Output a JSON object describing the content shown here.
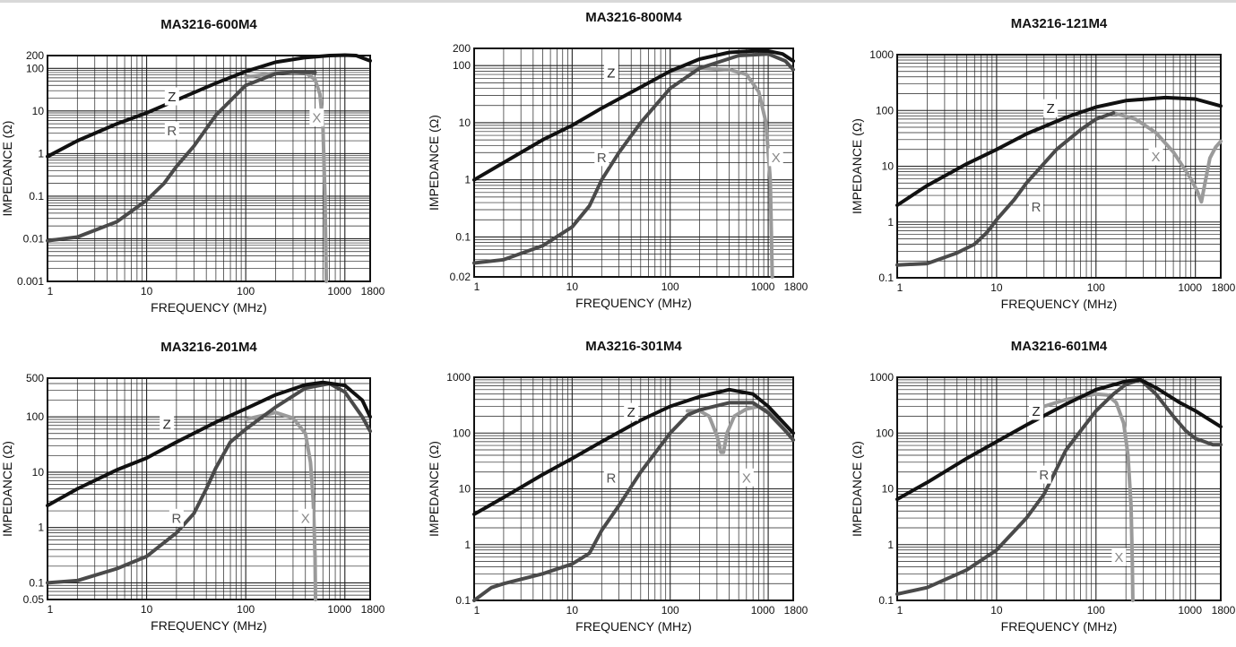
{
  "chart_data": [
    {
      "type": "line",
      "title": "MA3216-600M4",
      "xlabel": "FREQUENCY (MHz)",
      "ylabel": "IMPEDANCE (Ω)",
      "xscale": "log",
      "yscale": "log",
      "xlim": [
        1,
        1800
      ],
      "ylim": [
        0.001,
        200
      ],
      "xticks": [
        1,
        10,
        100,
        1000,
        1800
      ],
      "yticks": [
        0.001,
        0.01,
        0.1,
        1,
        10,
        100,
        200
      ],
      "grid": true,
      "series": [
        {
          "name": "Z",
          "label_at": [
            18,
            22
          ],
          "color": "#111111",
          "x": [
            1,
            2,
            5,
            10,
            20,
            50,
            100,
            200,
            400,
            700,
            1000,
            1300,
            1800
          ],
          "y": [
            0.85,
            2,
            5,
            9,
            18,
            45,
            85,
            140,
            180,
            200,
            205,
            200,
            150
          ]
        },
        {
          "name": "R",
          "label_at": [
            18,
            3.5
          ],
          "color": "#4a4a4a",
          "x": [
            1,
            2,
            5,
            10,
            15,
            20,
            30,
            50,
            100,
            200,
            300,
            500
          ],
          "y": [
            0.009,
            0.011,
            0.025,
            0.08,
            0.2,
            0.5,
            1.5,
            8,
            40,
            75,
            82,
            80
          ]
        },
        {
          "name": "X",
          "label_at": [
            520,
            7
          ],
          "color": "#9a9a9a",
          "x": [
            100,
            200,
            300,
            400,
            500,
            560,
            600,
            630,
            650
          ],
          "y": [
            62,
            78,
            82,
            78,
            55,
            25,
            5,
            0.1,
            0.001
          ]
        }
      ]
    },
    {
      "type": "line",
      "title": "MA3216-800M4",
      "xlabel": "FREQUENCY (MHz)",
      "ylabel": "IMPEDANCE (Ω)",
      "xscale": "log",
      "yscale": "log",
      "xlim": [
        1,
        1800
      ],
      "ylim": [
        0.02,
        200
      ],
      "xticks": [
        1,
        10,
        100,
        1000,
        1800
      ],
      "yticks": [
        0.02,
        0.1,
        1,
        10,
        100,
        200
      ],
      "grid": true,
      "series": [
        {
          "name": "Z",
          "label_at": [
            25,
            75
          ],
          "color": "#111111",
          "x": [
            1,
            2,
            5,
            10,
            20,
            50,
            100,
            200,
            400,
            700,
            1000,
            1400,
            1800
          ],
          "y": [
            1,
            2,
            5,
            9,
            18,
            42,
            80,
            130,
            170,
            180,
            180,
            160,
            120
          ]
        },
        {
          "name": "R",
          "label_at": [
            20,
            2.5
          ],
          "color": "#4a4a4a",
          "x": [
            1,
            2,
            5,
            10,
            15,
            20,
            30,
            50,
            100,
            200,
            500,
            1000,
            1500,
            1800
          ],
          "y": [
            0.035,
            0.04,
            0.07,
            0.15,
            0.35,
            1,
            3,
            10,
            40,
            90,
            150,
            160,
            120,
            85
          ]
        },
        {
          "name": "X",
          "label_at": [
            1200,
            2.5
          ],
          "color": "#9a9a9a",
          "x": [
            100,
            200,
            400,
            600,
            800,
            950,
            1050,
            1100
          ],
          "y": [
            80,
            90,
            85,
            70,
            35,
            10,
            1,
            0.02
          ]
        }
      ]
    },
    {
      "type": "line",
      "title": "MA3216-121M4",
      "xlabel": "FREQUENCY (MHz)",
      "ylabel": "IMPEDANCE (Ω)",
      "xscale": "log",
      "yscale": "log",
      "xlim": [
        1,
        1800
      ],
      "ylim": [
        0.1,
        1000
      ],
      "xticks": [
        1,
        10,
        100,
        1000,
        1800
      ],
      "yticks": [
        0.1,
        1,
        10,
        100,
        1000
      ],
      "grid": true,
      "series": [
        {
          "name": "Z",
          "label_at": [
            35,
            110
          ],
          "color": "#111111",
          "x": [
            1,
            2,
            5,
            10,
            20,
            50,
            100,
            200,
            500,
            1000,
            1800
          ],
          "y": [
            2,
            4.5,
            11,
            20,
            38,
            75,
            115,
            150,
            170,
            160,
            120
          ]
        },
        {
          "name": "R",
          "label_at": [
            25,
            1.9
          ],
          "color": "#4a4a4a",
          "x": [
            1,
            2,
            4,
            6,
            8,
            10,
            15,
            20,
            40,
            70,
            100,
            150
          ],
          "y": [
            0.17,
            0.18,
            0.28,
            0.4,
            0.65,
            1.1,
            2.5,
            5,
            20,
            45,
            70,
            90
          ]
        },
        {
          "name": "X",
          "label_at": [
            400,
            15
          ],
          "color": "#9a9a9a",
          "x": [
            150,
            250,
            400,
            600,
            900,
            1050,
            1150,
            1250,
            1400,
            1600,
            1800
          ],
          "y": [
            90,
            70,
            40,
            18,
            6,
            3.5,
            2.3,
            5,
            14,
            22,
            28
          ]
        }
      ]
    },
    {
      "type": "line",
      "title": "MA3216-201M4",
      "xlabel": "FREQUENCY (MHz)",
      "ylabel": "IMPEDANCE (Ω)",
      "xscale": "log",
      "yscale": "log",
      "xlim": [
        1,
        1800
      ],
      "ylim": [
        0.05,
        500
      ],
      "xticks": [
        1,
        10,
        100,
        1000,
        1800
      ],
      "yticks": [
        0.05,
        0.1,
        1,
        10,
        100,
        500
      ],
      "grid": true,
      "series": [
        {
          "name": "Z",
          "label_at": [
            16,
            75
          ],
          "color": "#111111",
          "x": [
            1,
            2,
            5,
            10,
            20,
            50,
            100,
            200,
            400,
            600,
            1000,
            1500,
            1800
          ],
          "y": [
            2.5,
            5,
            11,
            18,
            35,
            80,
            140,
            250,
            380,
            420,
            370,
            200,
            100
          ]
        },
        {
          "name": "R",
          "label_at": [
            20,
            1.5
          ],
          "color": "#4a4a4a",
          "x": [
            1,
            2,
            5,
            10,
            20,
            30,
            40,
            50,
            70,
            100,
            200,
            400,
            700,
            1000,
            1500,
            1800
          ],
          "y": [
            0.1,
            0.11,
            0.18,
            0.3,
            0.8,
            1.8,
            5,
            12,
            35,
            60,
            150,
            330,
            400,
            280,
            100,
            55
          ]
        },
        {
          "name": "X",
          "label_at": [
            400,
            1.5
          ],
          "color": "#9a9a9a",
          "x": [
            100,
            200,
            300,
            400,
            450,
            480,
            500,
            505
          ],
          "y": [
            90,
            120,
            95,
            50,
            15,
            3,
            0.3,
            0.05
          ]
        }
      ]
    },
    {
      "type": "line",
      "title": "MA3216-301M4",
      "xlabel": "FREQUENCY (MHz)",
      "ylabel": "IMPEDANCE (Ω)",
      "xscale": "log",
      "yscale": "log",
      "xlim": [
        1,
        1800
      ],
      "ylim": [
        0.1,
        1000
      ],
      "xticks": [
        1,
        10,
        100,
        1000,
        1800
      ],
      "yticks": [
        0.1,
        1,
        10,
        100,
        1000
      ],
      "grid": true,
      "series": [
        {
          "name": "Z",
          "label_at": [
            40,
            240
          ],
          "color": "#111111",
          "x": [
            1,
            2,
            5,
            10,
            20,
            50,
            100,
            200,
            400,
            700,
            1000,
            1800
          ],
          "y": [
            3.5,
            7,
            18,
            35,
            70,
            170,
            300,
            450,
            600,
            500,
            300,
            100
          ]
        },
        {
          "name": "R",
          "label_at": [
            25,
            16
          ],
          "color": "#4a4a4a",
          "x": [
            1,
            1.5,
            2,
            5,
            10,
            15,
            20,
            30,
            50,
            100,
            150,
            200,
            400,
            700,
            1000,
            1500,
            1800
          ],
          "y": [
            0.1,
            0.17,
            0.2,
            0.3,
            0.45,
            0.7,
            1.8,
            5,
            20,
            100,
            210,
            260,
            350,
            350,
            230,
            110,
            75
          ]
        },
        {
          "name": "X",
          "label_at": [
            600,
            16
          ],
          "color": "#9a9a9a",
          "x": [
            150,
            200,
            250,
            300,
            330,
            350,
            380,
            450,
            600,
            800,
            1000,
            1500,
            1800
          ],
          "y": [
            250,
            250,
            200,
            90,
            45,
            45,
            100,
            200,
            270,
            300,
            250,
            110,
            75
          ]
        }
      ]
    },
    {
      "type": "line",
      "title": "MA3216-601M4",
      "xlabel": "FREQUENCY (MHz)",
      "ylabel": "IMPEDANCE (Ω)",
      "xscale": "log",
      "yscale": "log",
      "xlim": [
        1,
        1800
      ],
      "ylim": [
        0.1,
        1000
      ],
      "xticks": [
        1,
        10,
        100,
        1000,
        1800
      ],
      "yticks": [
        0.1,
        1,
        10,
        100,
        1000
      ],
      "grid": true,
      "series": [
        {
          "name": "Z",
          "label_at": [
            25,
            250
          ],
          "color": "#111111",
          "x": [
            1,
            2,
            5,
            10,
            20,
            50,
            100,
            200,
            280,
            400,
            700,
            1000,
            1800
          ],
          "y": [
            6.5,
            13,
            35,
            70,
            140,
            330,
            600,
            850,
            900,
            650,
            350,
            250,
            130
          ]
        },
        {
          "name": "R",
          "label_at": [
            30,
            18
          ],
          "color": "#4a4a4a",
          "x": [
            1,
            2,
            5,
            10,
            20,
            30,
            50,
            100,
            150,
            200,
            280,
            400,
            600,
            800,
            1000,
            1500,
            1800
          ],
          "y": [
            0.13,
            0.17,
            0.35,
            0.8,
            3,
            8,
            50,
            250,
            500,
            750,
            900,
            500,
            200,
            110,
            80,
            62,
            62
          ]
        },
        {
          "name": "X",
          "label_at": [
            170,
            0.6
          ],
          "color": "#9a9a9a",
          "x": [
            30,
            50,
            100,
            130,
            160,
            190,
            210,
            225,
            232,
            235
          ],
          "y": [
            300,
            400,
            500,
            480,
            350,
            150,
            40,
            5,
            0.5,
            0.1
          ]
        }
      ]
    }
  ]
}
